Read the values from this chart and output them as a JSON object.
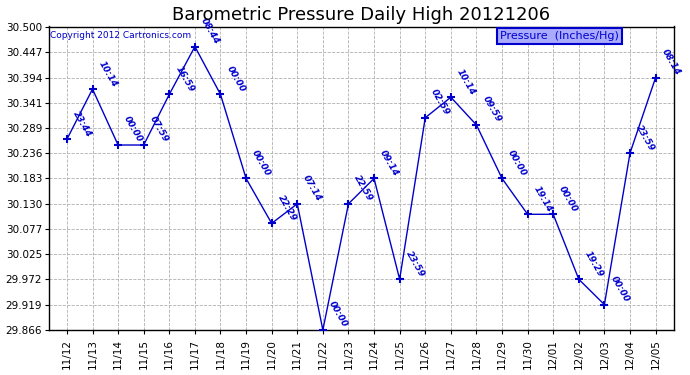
{
  "title": "Barometric Pressure Daily High 20121206",
  "copyright": "Copyright 2012 Cartronics.com",
  "legend_label": "Pressure  (Inches/Hg)",
  "x_labels": [
    "11/12",
    "11/13",
    "11/14",
    "11/15",
    "11/16",
    "11/17",
    "11/18",
    "11/19",
    "11/20",
    "11/21",
    "11/22",
    "11/23",
    "11/24",
    "11/25",
    "11/26",
    "11/27",
    "11/28",
    "11/29",
    "11/30",
    "12/01",
    "12/02",
    "12/03",
    "12/04",
    "12/05"
  ],
  "y_values": [
    30.265,
    30.37,
    30.253,
    30.253,
    30.359,
    30.459,
    30.359,
    30.183,
    30.089,
    30.13,
    29.866,
    30.13,
    30.183,
    29.972,
    30.31,
    30.353,
    30.295,
    30.183,
    30.108,
    30.108,
    29.972,
    29.919,
    30.236,
    30.394
  ],
  "point_labels": [
    "23:44",
    "10:14",
    "00:00",
    "07:59",
    "16:59",
    "08:44",
    "00:00",
    "00:00",
    "22:29",
    "07:14",
    "00:00",
    "22:59",
    "09:14",
    "23:59",
    "02:59",
    "10:14",
    "09:59",
    "00:00",
    "19:14",
    "00:00",
    "19:29",
    "00:00",
    "23:59",
    "08:14"
  ],
  "line_color": "#0000cc",
  "marker_color": "#0000cc",
  "background_color": "#ffffff",
  "plot_bg_color": "#ffffff",
  "grid_color": "#b0b0b0",
  "y_min": 29.866,
  "y_max": 30.5,
  "y_ticks": [
    29.866,
    29.919,
    29.972,
    30.025,
    30.077,
    30.13,
    30.183,
    30.236,
    30.289,
    30.341,
    30.394,
    30.447,
    30.5
  ],
  "title_fontsize": 13,
  "label_fontsize": 6.5,
  "tick_fontsize": 7.5,
  "legend_fontsize": 8,
  "copyright_fontsize": 6.5
}
